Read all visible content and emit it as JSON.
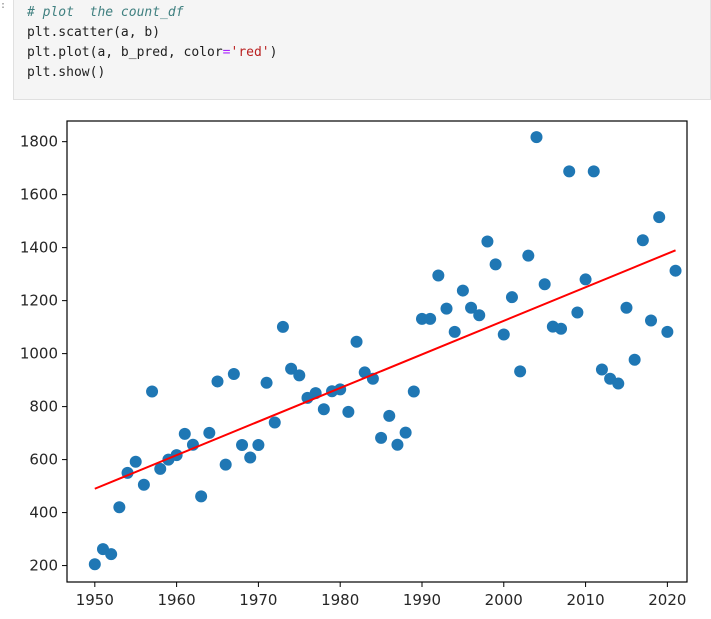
{
  "notebook": {
    "code_cell": {
      "lines": [
        {
          "parts": [
            {
              "t": "# plot  the count_df",
              "c": "comment"
            }
          ]
        },
        {
          "parts": [
            {
              "t": "plt.scatter(a, b)",
              "c": "plain"
            }
          ]
        },
        {
          "parts": [
            {
              "t": "plt.plot(a, b_pred, color",
              "c": "plain"
            },
            {
              "t": "=",
              "c": "op"
            },
            {
              "t": "'red'",
              "c": "str"
            },
            {
              "t": ")",
              "c": "plain"
            }
          ]
        },
        {
          "parts": [
            {
              "t": "plt.show()",
              "c": "plain"
            }
          ]
        }
      ]
    }
  },
  "chart_data": {
    "type": "scatter",
    "title": "",
    "xlabel": "",
    "ylabel": "",
    "xlim": [
      1946.6,
      2022.4
    ],
    "ylim": [
      138,
      1878
    ],
    "xticks": [
      1950,
      1960,
      1970,
      1980,
      1990,
      2000,
      2010,
      2020
    ],
    "yticks": [
      200,
      400,
      600,
      800,
      1000,
      1200,
      1400,
      1600,
      1800
    ],
    "grid": false,
    "legend": "none",
    "colors": {
      "scatter": "#1f77b4",
      "line": "#ff0000"
    },
    "series": [
      {
        "kind": "scatter",
        "points": [
          [
            1950,
            205
          ],
          [
            1951,
            262
          ],
          [
            1952,
            243
          ],
          [
            1953,
            420
          ],
          [
            1954,
            550
          ],
          [
            1955,
            592
          ],
          [
            1956,
            505
          ],
          [
            1957,
            857
          ],
          [
            1958,
            565
          ],
          [
            1959,
            600
          ],
          [
            1960,
            617
          ],
          [
            1961,
            697
          ],
          [
            1962,
            656
          ],
          [
            1963,
            461
          ],
          [
            1964,
            701
          ],
          [
            1965,
            895
          ],
          [
            1966,
            581
          ],
          [
            1967,
            923
          ],
          [
            1968,
            655
          ],
          [
            1969,
            608
          ],
          [
            1970,
            655
          ],
          [
            1971,
            890
          ],
          [
            1972,
            740
          ],
          [
            1973,
            1101
          ],
          [
            1974,
            943
          ],
          [
            1975,
            918
          ],
          [
            1976,
            833
          ],
          [
            1977,
            851
          ],
          [
            1978,
            790
          ],
          [
            1979,
            858
          ],
          [
            1980,
            865
          ],
          [
            1981,
            780
          ],
          [
            1982,
            1045
          ],
          [
            1983,
            929
          ],
          [
            1984,
            905
          ],
          [
            1985,
            682
          ],
          [
            1986,
            765
          ],
          [
            1987,
            656
          ],
          [
            1988,
            702
          ],
          [
            1989,
            857
          ],
          [
            1990,
            1131
          ],
          [
            1991,
            1131
          ],
          [
            1992,
            1295
          ],
          [
            1993,
            1170
          ],
          [
            1994,
            1082
          ],
          [
            1995,
            1238
          ],
          [
            1996,
            1173
          ],
          [
            1997,
            1145
          ],
          [
            1998,
            1423
          ],
          [
            1999,
            1337
          ],
          [
            2000,
            1072
          ],
          [
            2001,
            1213
          ],
          [
            2002,
            933
          ],
          [
            2003,
            1370
          ],
          [
            2004,
            1817
          ],
          [
            2005,
            1262
          ],
          [
            2006,
            1102
          ],
          [
            2007,
            1094
          ],
          [
            2008,
            1688
          ],
          [
            2009,
            1155
          ],
          [
            2010,
            1280
          ],
          [
            2011,
            1688
          ],
          [
            2012,
            940
          ],
          [
            2013,
            905
          ],
          [
            2014,
            887
          ],
          [
            2015,
            1173
          ],
          [
            2016,
            977
          ],
          [
            2017,
            1428
          ],
          [
            2018,
            1125
          ],
          [
            2019,
            1515
          ],
          [
            2020,
            1082
          ],
          [
            2021,
            1313
          ]
        ]
      },
      {
        "kind": "line",
        "points": [
          [
            1950,
            490
          ],
          [
            2021,
            1390
          ]
        ]
      }
    ]
  }
}
